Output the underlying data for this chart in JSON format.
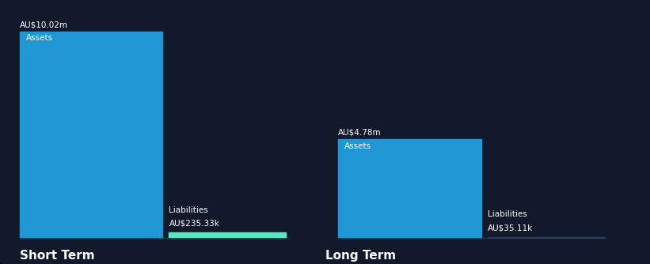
{
  "background_color": "#12192b",
  "short_term": {
    "assets_value": 10020000,
    "liabilities_value": 235330,
    "assets_label": "AU$10.02m",
    "liabilities_label": "AU$235.33k",
    "assets_color": "#2196d4",
    "liabilities_color": "#5ee6c0",
    "category_label": "Short Term",
    "bar_label_assets": "Assets",
    "bar_label_liabilities": "Liabilities"
  },
  "long_term": {
    "assets_value": 4780000,
    "liabilities_value": 35110,
    "assets_label": "AU$4.78m",
    "liabilities_label": "AU$35.11k",
    "assets_color": "#2196d4",
    "liabilities_color": "#2196d4",
    "category_label": "Long Term",
    "bar_label_assets": "Assets",
    "bar_label_liabilities": "Liabilities"
  },
  "text_color": "#ffffff",
  "axis_line_color": "#2a3a5a",
  "scale_max": 10020000
}
